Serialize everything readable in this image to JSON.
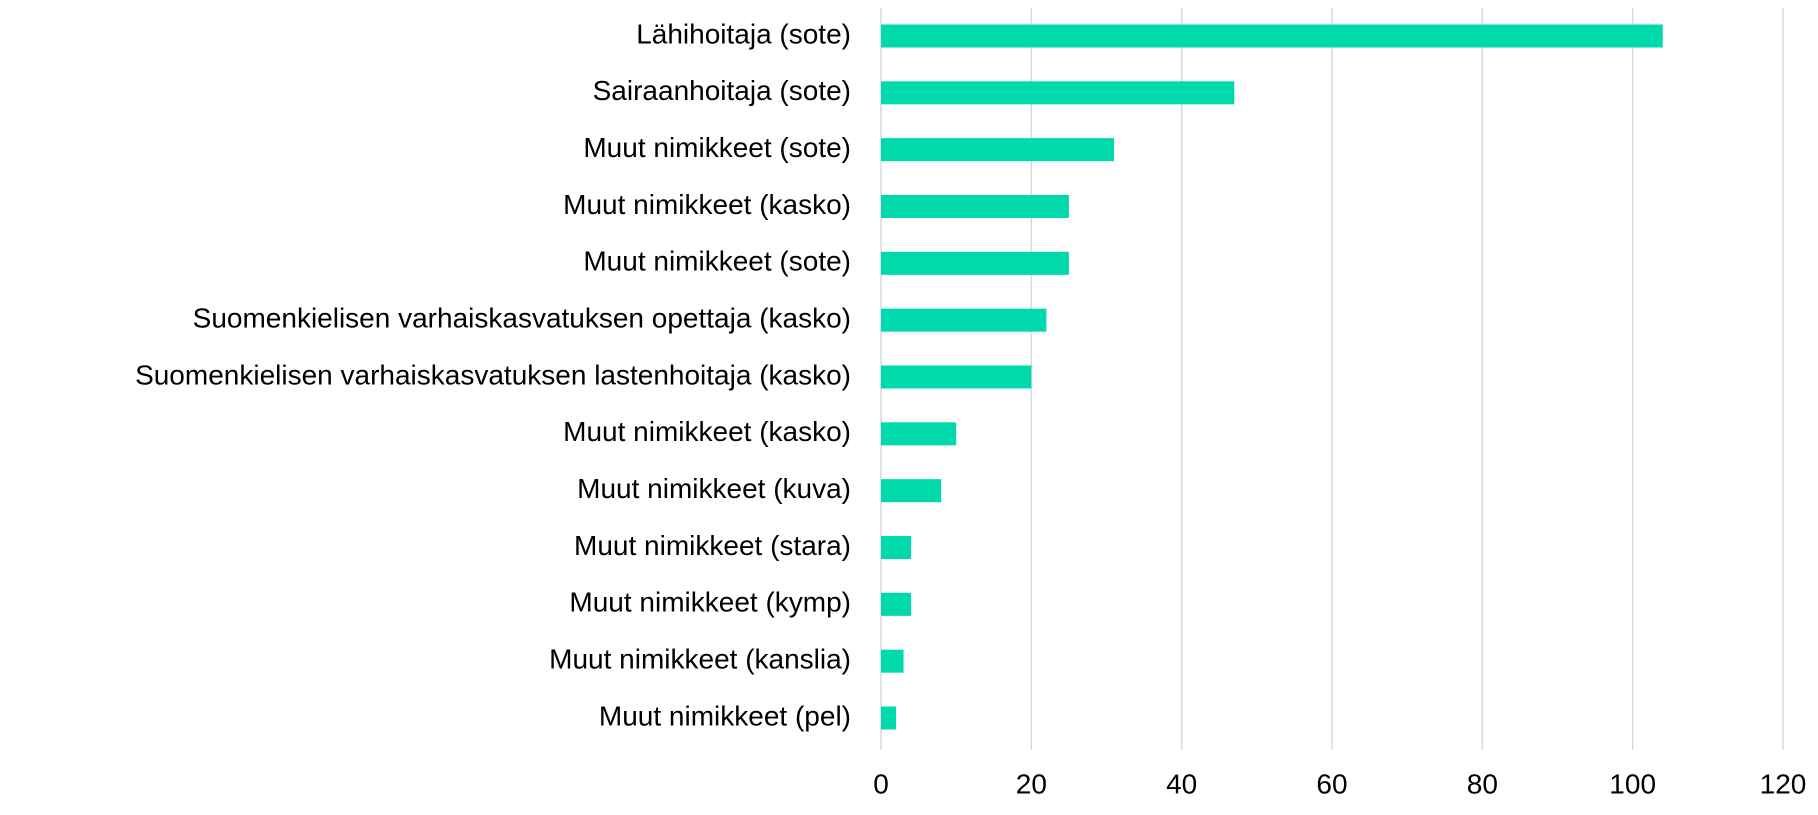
{
  "chart_data": {
    "type": "hbar",
    "categories": [
      "Lähihoitaja (sote)",
      "Sairaanhoitaja (sote)",
      "Muut nimikkeet (sote)",
      "Muut nimikkeet (kasko)",
      "Muut nimikkeet (sote)",
      "Suomenkielisen varhaiskasvatuksen opettaja (kasko)",
      "Suomenkielisen varhaiskasvatuksen lastenhoitaja (kasko)",
      "Muut nimikkeet (kasko)",
      "Muut nimikkeet (kuva)",
      "Muut nimikkeet (stara)",
      "Muut nimikkeet (kymp)",
      "Muut nimikkeet (kanslia)",
      "Muut nimikkeet (pel)"
    ],
    "values": [
      104,
      47,
      31,
      25,
      25,
      22,
      20,
      10,
      8,
      4,
      4,
      3,
      2
    ],
    "color": "#00d9ab",
    "xlim": [
      0,
      120
    ],
    "xticks": [
      0,
      20,
      40,
      60,
      80,
      100,
      120
    ],
    "grid": true
  }
}
